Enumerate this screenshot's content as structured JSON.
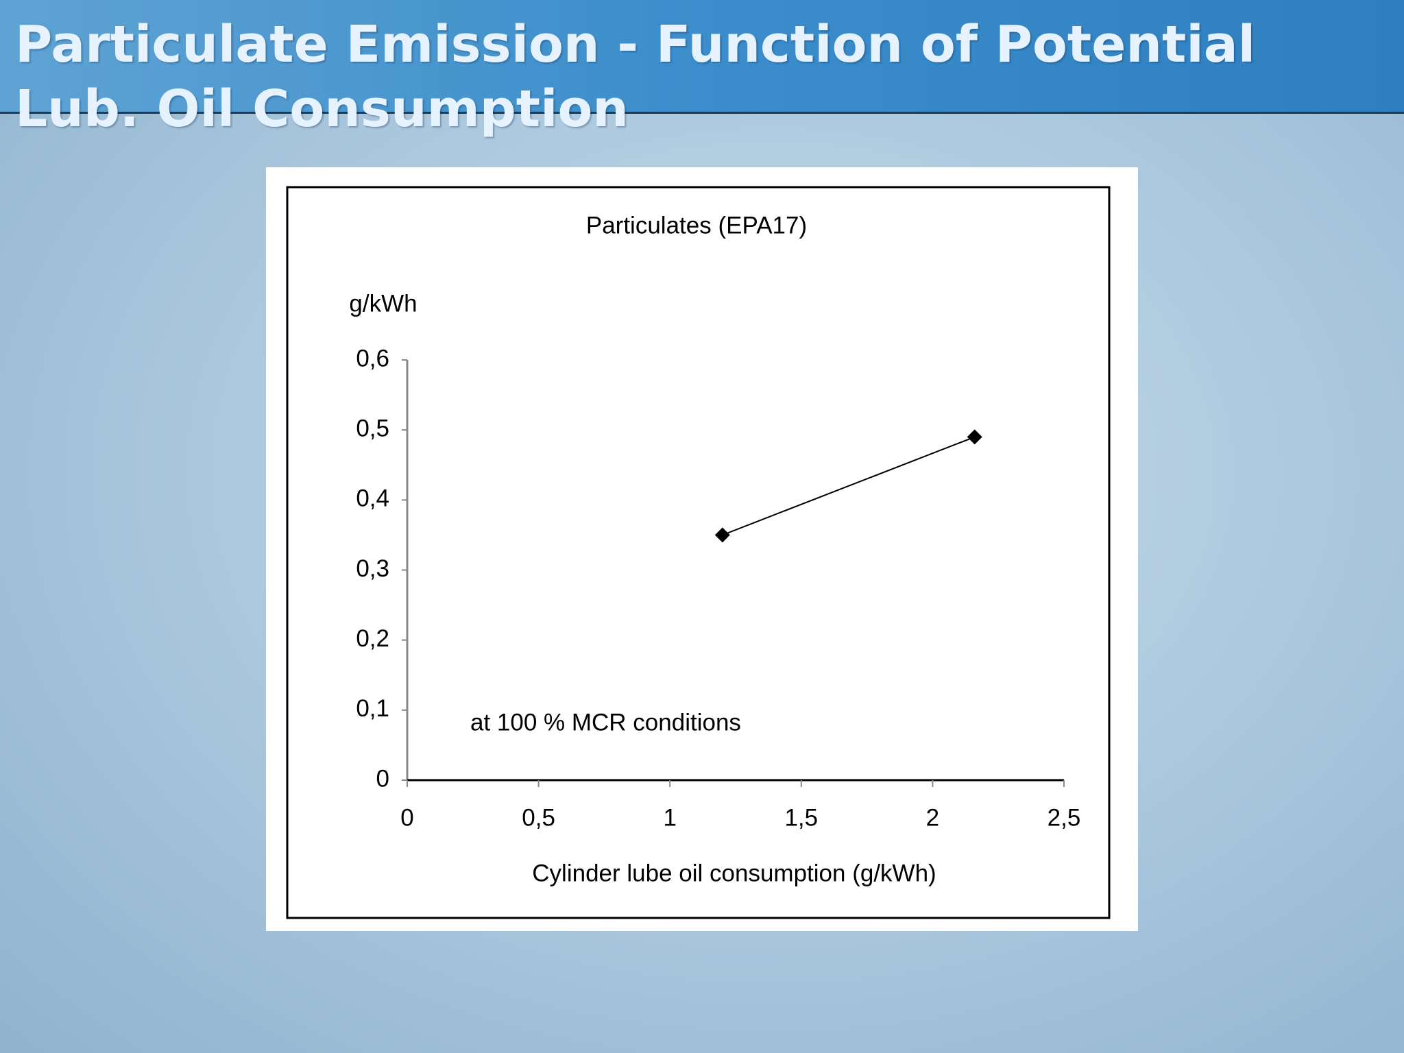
{
  "slide_title": "Particulate Emission - Function of Potential Lub. Oil Consumption",
  "chart_data": {
    "type": "line",
    "title": "Particulates  (EPA17)",
    "y_label": "g/kWh",
    "x_label": "Cylinder lube oil consumption (g/kWh)",
    "annotation": "at 100 % MCR conditions",
    "x": [
      1.2,
      2.16
    ],
    "series": [
      {
        "name": "Particulates",
        "color": "#000000",
        "values": [
          0.35,
          0.49
        ]
      }
    ],
    "xlim": [
      0,
      2.5
    ],
    "xticks": [
      0,
      {
        "value": 0.5,
        "label": "0,5"
      },
      1,
      {
        "value": 1.5,
        "label": "1,5"
      },
      2,
      {
        "value": 2.5,
        "label": "2,5"
      }
    ],
    "ylim": [
      0,
      0.6
    ],
    "yticks": [
      0,
      {
        "value": 0.1,
        "label": "0,1"
      },
      {
        "value": 0.2,
        "label": "0,2"
      },
      {
        "value": 0.3,
        "label": "0,3"
      },
      {
        "value": 0.4,
        "label": "0,4"
      },
      {
        "value": 0.5,
        "label": "0,5"
      },
      {
        "value": 0.6,
        "label": "0,6"
      }
    ],
    "grid": false
  }
}
